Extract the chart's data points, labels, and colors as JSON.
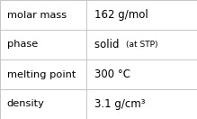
{
  "rows": [
    {
      "label": "molar mass",
      "value": "162 g/mol",
      "suffix": null
    },
    {
      "label": "phase",
      "value": "solid",
      "suffix": "(at STP)"
    },
    {
      "label": "melting point",
      "value": "300 °C",
      "suffix": null
    },
    {
      "label": "density",
      "value": "3.1 g/cm³",
      "suffix": null
    }
  ],
  "col_split": 0.44,
  "border_color": "#bbbbbb",
  "bg_color": "#ffffff",
  "text_color": "#000000",
  "label_fontsize": 8.2,
  "value_fontsize": 8.5,
  "suffix_fontsize": 6.5,
  "figwidth": 2.19,
  "figheight": 1.32,
  "dpi": 100
}
